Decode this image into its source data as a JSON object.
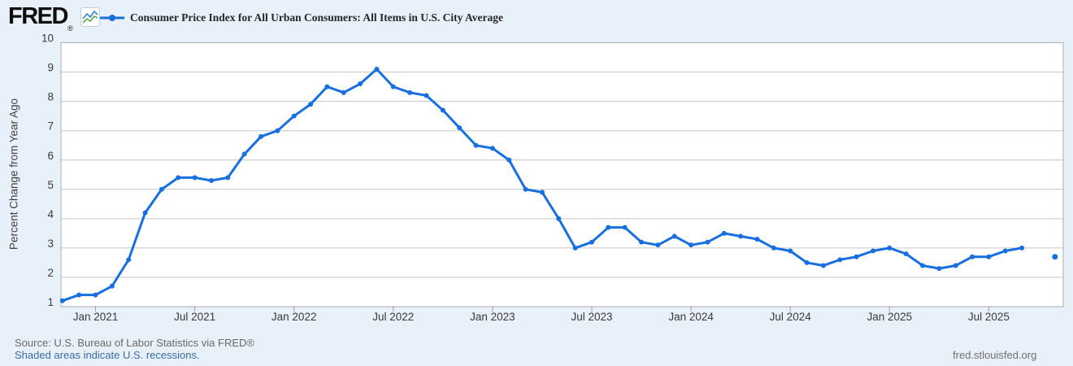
{
  "header": {
    "logo_text": "FRED",
    "registered_mark": "®",
    "legend_label": "Consumer Price Index for All Urban Consumers: All Items in U.S. City Average"
  },
  "chart_data": {
    "type": "line",
    "title": "Consumer Price Index for All Urban Consumers: All Items in U.S. City Average",
    "xlabel": "",
    "ylabel": "Percent Change from Year Ago",
    "ylim": [
      1,
      10
    ],
    "y_ticks": [
      1,
      2,
      3,
      4,
      5,
      6,
      7,
      8,
      9,
      10
    ],
    "x_ticks": [
      {
        "label": "Jan 2021",
        "month": "2021-01"
      },
      {
        "label": "Jul 2021",
        "month": "2021-07"
      },
      {
        "label": "Jan 2022",
        "month": "2022-01"
      },
      {
        "label": "Jul 2022",
        "month": "2022-07"
      },
      {
        "label": "Jan 2023",
        "month": "2023-01"
      },
      {
        "label": "Jul 2023",
        "month": "2023-07"
      },
      {
        "label": "Jan 2024",
        "month": "2024-01"
      },
      {
        "label": "Jul 2024",
        "month": "2024-07"
      },
      {
        "label": "Jan 2025",
        "month": "2025-01"
      },
      {
        "label": "Jul 2025",
        "month": "2025-07"
      }
    ],
    "grid": true,
    "legend_position": "top",
    "series": [
      {
        "name": "Consumer Price Index for All Urban Consumers: All Items in U.S. City Average",
        "start_month": "2020-11",
        "frequency": "monthly",
        "values": [
          1.2,
          1.4,
          1.4,
          1.7,
          2.6,
          4.2,
          5.0,
          5.4,
          5.4,
          5.3,
          5.4,
          6.2,
          6.8,
          7.0,
          7.5,
          7.9,
          8.5,
          8.3,
          8.6,
          9.1,
          8.5,
          8.3,
          8.2,
          7.7,
          7.1,
          6.5,
          6.4,
          6.0,
          5.0,
          4.9,
          4.0,
          3.0,
          3.2,
          3.7,
          3.7,
          3.2,
          3.1,
          3.4,
          3.1,
          3.2,
          3.5,
          3.4,
          3.3,
          3.0,
          2.9,
          2.5,
          2.4,
          2.6,
          2.7,
          2.9,
          3.0,
          2.8,
          2.4,
          2.3,
          2.4,
          2.7,
          2.7,
          2.9,
          3.0
        ]
      }
    ],
    "detached_point": {
      "month": "2025-11",
      "value": 2.7
    },
    "colors": {
      "line": "#186fdf",
      "page_background": "#e8f1fa",
      "plot_background": "#ffffff",
      "gridline": "#c6c6c6",
      "plot_border": "#adadad",
      "tick_text": "#3a3a3a",
      "link": "#3c6aa5"
    }
  },
  "footer": {
    "source_line": "Source: U.S. Bureau of Labor Statistics via FRED®",
    "recession_note": "Shaded areas indicate U.S. recessions.",
    "site_link": "fred.stlouisfed.org"
  }
}
